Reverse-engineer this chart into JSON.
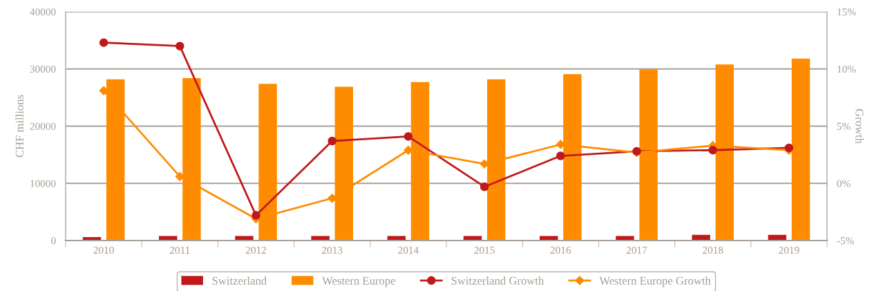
{
  "chart_data": {
    "type": "bar",
    "ylabel": "CHF millions",
    "y2label": "Growth",
    "categories": [
      "2010",
      "2011",
      "2012",
      "2013",
      "2014",
      "2015",
      "2016",
      "2017",
      "2018",
      "2019"
    ],
    "series": [
      {
        "name": "Switzerland",
        "color": "#c0191c",
        "values": [
          600,
          800,
          800,
          800,
          800,
          800,
          800,
          800,
          1000,
          1000
        ]
      },
      {
        "name": "Western Europe",
        "color": "#ff8c00",
        "values": [
          28200,
          28400,
          27400,
          26900,
          27700,
          28200,
          29100,
          29900,
          30800,
          31800
        ]
      },
      {
        "name": "Switzerland Growth",
        "type": "line",
        "axis": "y2",
        "marker": "circle",
        "color": "#c0191c",
        "values": [
          12.3,
          12.0,
          -2.8,
          3.7,
          4.1,
          -0.3,
          2.4,
          2.8,
          2.9,
          3.1
        ]
      },
      {
        "name": "Western Europe Growth",
        "type": "line",
        "axis": "y2",
        "marker": "diamond",
        "color": "#ff8c00",
        "values": [
          8.1,
          0.6,
          -3.1,
          -1.3,
          2.9,
          1.7,
          3.4,
          2.7,
          3.3,
          2.9
        ]
      }
    ],
    "ylim": [
      0,
      40000
    ],
    "yticks": [
      0,
      10000,
      20000,
      30000,
      40000
    ],
    "y2lim": [
      -5,
      15
    ],
    "y2ticks": [
      {
        "value": -5,
        "label": "-5%"
      },
      {
        "value": 0,
        "label": "0%"
      },
      {
        "value": 5,
        "label": "5%"
      },
      {
        "value": 10,
        "label": "10%"
      },
      {
        "value": 15,
        "label": "15%"
      }
    ],
    "grid": "y",
    "legend": "bottom"
  }
}
